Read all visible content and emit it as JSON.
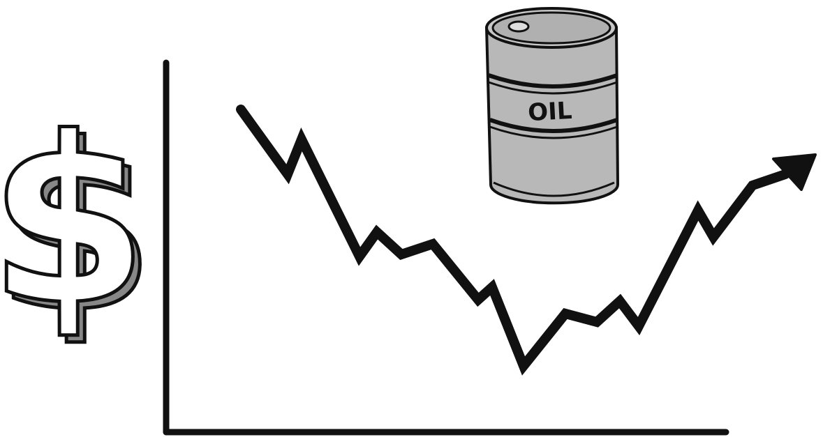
{
  "symbol": "$",
  "barrel": {
    "label": "OIL"
  }
}
